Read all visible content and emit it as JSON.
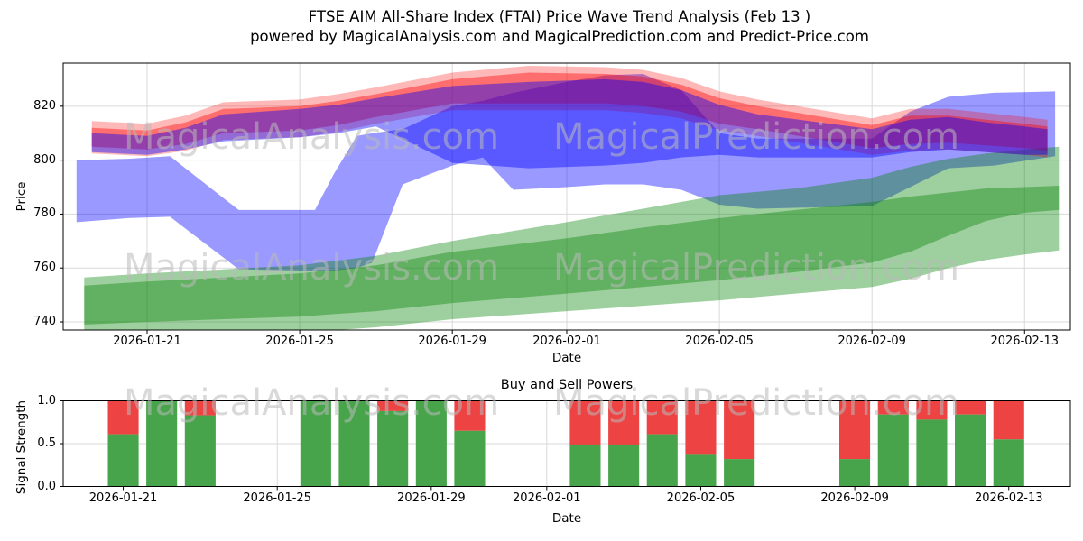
{
  "title": {
    "line1": "FTSE AIM All-Share Index (FTAI) Price Wave Trend Analysis (Feb 13 )",
    "line2": "powered by MagicalAnalysis.com and MagicalPrediction.com and Predict-Price.com"
  },
  "watermarks": {
    "left": "MagicalAnalysis.com",
    "right": "MagicalPrediction.com"
  },
  "chart_data": [
    {
      "type": "area",
      "title": "FTSE AIM All-Share Index (FTAI) Price Wave Trend Analysis (Feb 13 )",
      "xlabel": "Date",
      "ylabel": "Price",
      "ylim": [
        737,
        836
      ],
      "grid": true,
      "legend": "none",
      "x_day0_date": "2026-01-19",
      "xlim_days": [
        -0.2,
        26.2
      ],
      "yticks": [
        {
          "v": 740,
          "label": "740"
        },
        {
          "v": 760,
          "label": "760"
        },
        {
          "v": 780,
          "label": "780"
        },
        {
          "v": 800,
          "label": "800"
        },
        {
          "v": 820,
          "label": "820"
        }
      ],
      "xticks": [
        {
          "day": 2,
          "label": "2026-01-21"
        },
        {
          "day": 6,
          "label": "2026-01-25"
        },
        {
          "day": 10,
          "label": "2026-01-29"
        },
        {
          "day": 13,
          "label": "2026-02-01"
        },
        {
          "day": 17,
          "label": "2026-02-05"
        },
        {
          "day": 21,
          "label": "2026-02-09"
        },
        {
          "day": 25,
          "label": "2026-02-13"
        }
      ],
      "bands": [
        {
          "name": "forecast-wave-blue-wide",
          "color": "#0000ff",
          "opacity": 0.4,
          "points": [
            [
              0.15,
              777,
              800
            ],
            [
              1.5,
              778.5,
              800.5
            ],
            [
              2.6,
              779,
              801.5
            ],
            [
              4.4,
              759.5,
              781.5
            ],
            [
              6.4,
              759,
              781.5
            ],
            [
              6.9,
              759,
              795
            ],
            [
              7.5,
              760,
              809
            ],
            [
              7.9,
              762,
              810
            ],
            [
              8.7,
              791,
              811.5
            ],
            [
              10,
              798,
              820
            ],
            [
              10.8,
              801,
              822
            ],
            [
              11.6,
              789,
              825
            ],
            [
              13,
              790,
              829
            ],
            [
              14,
              791,
              831.5
            ],
            [
              15,
              791,
              832
            ],
            [
              16,
              789,
              826
            ],
            [
              17,
              783.5,
              810
            ],
            [
              18,
              782,
              808
            ],
            [
              21,
              783,
              808
            ],
            [
              22,
              790,
              818
            ],
            [
              23,
              797,
              823.5
            ],
            [
              24.2,
              798,
              825
            ],
            [
              25.8,
              801.5,
              825.5
            ]
          ]
        },
        {
          "name": "support-band-green-lower",
          "color": "#008000",
          "opacity": 0.38,
          "points": [
            [
              0.35,
              731,
              753.5
            ],
            [
              2,
              733,
              755
            ],
            [
              4,
              735,
              756.5
            ],
            [
              6,
              736,
              758
            ],
            [
              8,
              738,
              761
            ],
            [
              10,
              741,
              766
            ],
            [
              13,
              744,
              771
            ],
            [
              15,
              746,
              775
            ],
            [
              17,
              748,
              778.5
            ],
            [
              19,
              750.5,
              781.5
            ],
            [
              21,
              753,
              784.5
            ],
            [
              22,
              756,
              786.5
            ],
            [
              23,
              760,
              788
            ],
            [
              24,
              763,
              789.5
            ],
            [
              25,
              765,
              790
            ],
            [
              25.9,
              766.5,
              790.5
            ]
          ]
        },
        {
          "name": "support-band-green-upper",
          "color": "#008000",
          "opacity": 0.38,
          "points": [
            [
              0.35,
              739,
              756.5
            ],
            [
              2,
              740,
              758
            ],
            [
              4,
              741,
              759.5
            ],
            [
              6,
              742,
              761
            ],
            [
              8,
              744,
              764.5
            ],
            [
              10,
              747,
              770
            ],
            [
              13,
              750.5,
              777
            ],
            [
              15,
              753,
              782
            ],
            [
              17,
              755.5,
              787
            ],
            [
              19,
              758.5,
              789.5
            ],
            [
              21,
              762,
              793.5
            ],
            [
              22,
              766,
              797.5
            ],
            [
              23,
              772,
              800.5
            ],
            [
              24,
              777.5,
              802.5
            ],
            [
              25,
              780.5,
              804
            ],
            [
              25.9,
              781.5,
              805
            ]
          ]
        },
        {
          "name": "price-band-red-outer",
          "color": "#ff0000",
          "opacity": 0.28,
          "points": [
            [
              0.55,
              802.5,
              814.5
            ],
            [
              2,
              801.5,
              813.5
            ],
            [
              3,
              803.5,
              816.5
            ],
            [
              4,
              807.5,
              821.5
            ],
            [
              6,
              808.5,
              822.5
            ],
            [
              7,
              810.5,
              824.5
            ],
            [
              8,
              813.5,
              827
            ],
            [
              10,
              818.5,
              832.5
            ],
            [
              12,
              818.5,
              835
            ],
            [
              14,
              818.5,
              834.5
            ],
            [
              15,
              817.5,
              833.5
            ],
            [
              16,
              815.5,
              830.5
            ],
            [
              17,
              811,
              825.5
            ],
            [
              18,
              809,
              822.5
            ],
            [
              21,
              802,
              815.5
            ],
            [
              22,
              803.5,
              819
            ],
            [
              23,
              804,
              819
            ],
            [
              24,
              803,
              817.5
            ],
            [
              25,
              802,
              816
            ],
            [
              25.6,
              801,
              815
            ]
          ]
        },
        {
          "name": "price-band-red-inner",
          "color": "#ff0000",
          "opacity": 0.4,
          "points": [
            [
              0.55,
              805,
              812
            ],
            [
              2,
              804,
              811
            ],
            [
              3,
              806,
              814
            ],
            [
              4,
              810,
              819
            ],
            [
              6,
              811,
              820
            ],
            [
              7,
              813,
              822
            ],
            [
              8,
              816,
              824.5
            ],
            [
              10,
              821,
              830
            ],
            [
              12,
              821,
              832.5
            ],
            [
              14,
              821,
              832
            ],
            [
              15,
              820,
              831
            ],
            [
              16,
              818,
              828
            ],
            [
              17,
              813.5,
              823
            ],
            [
              18,
              811.5,
              820
            ],
            [
              21,
              804.5,
              813
            ],
            [
              22,
              806,
              816.5
            ],
            [
              23,
              806.5,
              816.5
            ],
            [
              24,
              805.5,
              815
            ],
            [
              25,
              804.5,
              813.5
            ],
            [
              25.6,
              803.5,
              812.5
            ]
          ]
        },
        {
          "name": "trend-band-blue-mid",
          "color": "#0000ff",
          "opacity": 0.42,
          "points": [
            [
              0.55,
              803,
              810
            ],
            [
              2,
              802,
              809
            ],
            [
              3,
              804,
              812
            ],
            [
              4,
              807,
              817
            ],
            [
              6,
              808.5,
              819
            ],
            [
              7,
              810,
              820.5
            ],
            [
              8,
              812.5,
              823
            ],
            [
              10,
              799,
              827.5
            ],
            [
              12,
              797,
              829
            ],
            [
              14,
              798,
              830
            ],
            [
              15,
              799,
              829
            ],
            [
              16,
              801,
              826
            ],
            [
              17,
              802,
              820.5
            ],
            [
              18,
              801,
              817
            ],
            [
              21,
              801,
              811.5
            ],
            [
              22,
              803,
              815
            ],
            [
              23,
              804,
              816
            ],
            [
              24,
              803,
              814
            ],
            [
              25,
              802,
              812.5
            ],
            [
              25.6,
              802,
              811.5
            ]
          ]
        }
      ]
    },
    {
      "type": "bar",
      "stacked": true,
      "title": "Buy and Sell Powers",
      "xlabel": "Date",
      "ylabel": "Signal Strength",
      "ylim": [
        0,
        1
      ],
      "grid": true,
      "x_day0_date": "2026-01-19",
      "xlim_days": [
        0.44,
        26.6
      ],
      "bar_width_days": 0.8,
      "series": [
        {
          "name": "buy",
          "color": "#47a44a"
        },
        {
          "name": "sell",
          "color": "#ee4343"
        }
      ],
      "yticks": [
        {
          "v": 0.0,
          "label": "0.0"
        },
        {
          "v": 0.5,
          "label": "0.5"
        },
        {
          "v": 1.0,
          "label": "1.0"
        }
      ],
      "xticks": [
        {
          "day": 2,
          "label": "2026-01-21"
        },
        {
          "day": 6,
          "label": "2026-01-25"
        },
        {
          "day": 10,
          "label": "2026-01-29"
        },
        {
          "day": 13,
          "label": "2026-02-01"
        },
        {
          "day": 17,
          "label": "2026-02-05"
        },
        {
          "day": 21,
          "label": "2026-02-09"
        },
        {
          "day": 25,
          "label": "2026-02-13"
        }
      ],
      "bars": [
        {
          "date": "2026-01-21",
          "day": 2,
          "buy": 0.61,
          "sell": 0.39
        },
        {
          "date": "2026-01-22",
          "day": 3,
          "buy": 1.0,
          "sell": 0.0
        },
        {
          "date": "2026-01-23",
          "day": 4,
          "buy": 0.83,
          "sell": 0.17
        },
        {
          "date": "2026-01-26",
          "day": 7,
          "buy": 1.0,
          "sell": 0.0
        },
        {
          "date": "2026-01-27",
          "day": 8,
          "buy": 1.0,
          "sell": 0.0
        },
        {
          "date": "2026-01-28",
          "day": 9,
          "buy": 0.88,
          "sell": 0.12
        },
        {
          "date": "2026-01-29",
          "day": 10,
          "buy": 1.0,
          "sell": 0.0
        },
        {
          "date": "2026-01-30",
          "day": 11,
          "buy": 0.65,
          "sell": 0.35
        },
        {
          "date": "2026-02-02",
          "day": 14,
          "buy": 0.49,
          "sell": 0.51
        },
        {
          "date": "2026-02-03",
          "day": 15,
          "buy": 0.49,
          "sell": 0.51
        },
        {
          "date": "2026-02-04",
          "day": 16,
          "buy": 0.61,
          "sell": 0.39
        },
        {
          "date": "2026-02-05",
          "day": 17,
          "buy": 0.37,
          "sell": 0.63
        },
        {
          "date": "2026-02-06",
          "day": 18,
          "buy": 0.32,
          "sell": 0.68
        },
        {
          "date": "2026-02-09",
          "day": 21,
          "buy": 0.32,
          "sell": 0.68
        },
        {
          "date": "2026-02-10",
          "day": 22,
          "buy": 0.84,
          "sell": 0.16
        },
        {
          "date": "2026-02-11",
          "day": 23,
          "buy": 0.78,
          "sell": 0.22
        },
        {
          "date": "2026-02-12",
          "day": 24,
          "buy": 0.84,
          "sell": 0.16
        },
        {
          "date": "2026-02-13",
          "day": 25,
          "buy": 0.55,
          "sell": 0.45
        }
      ]
    }
  ]
}
